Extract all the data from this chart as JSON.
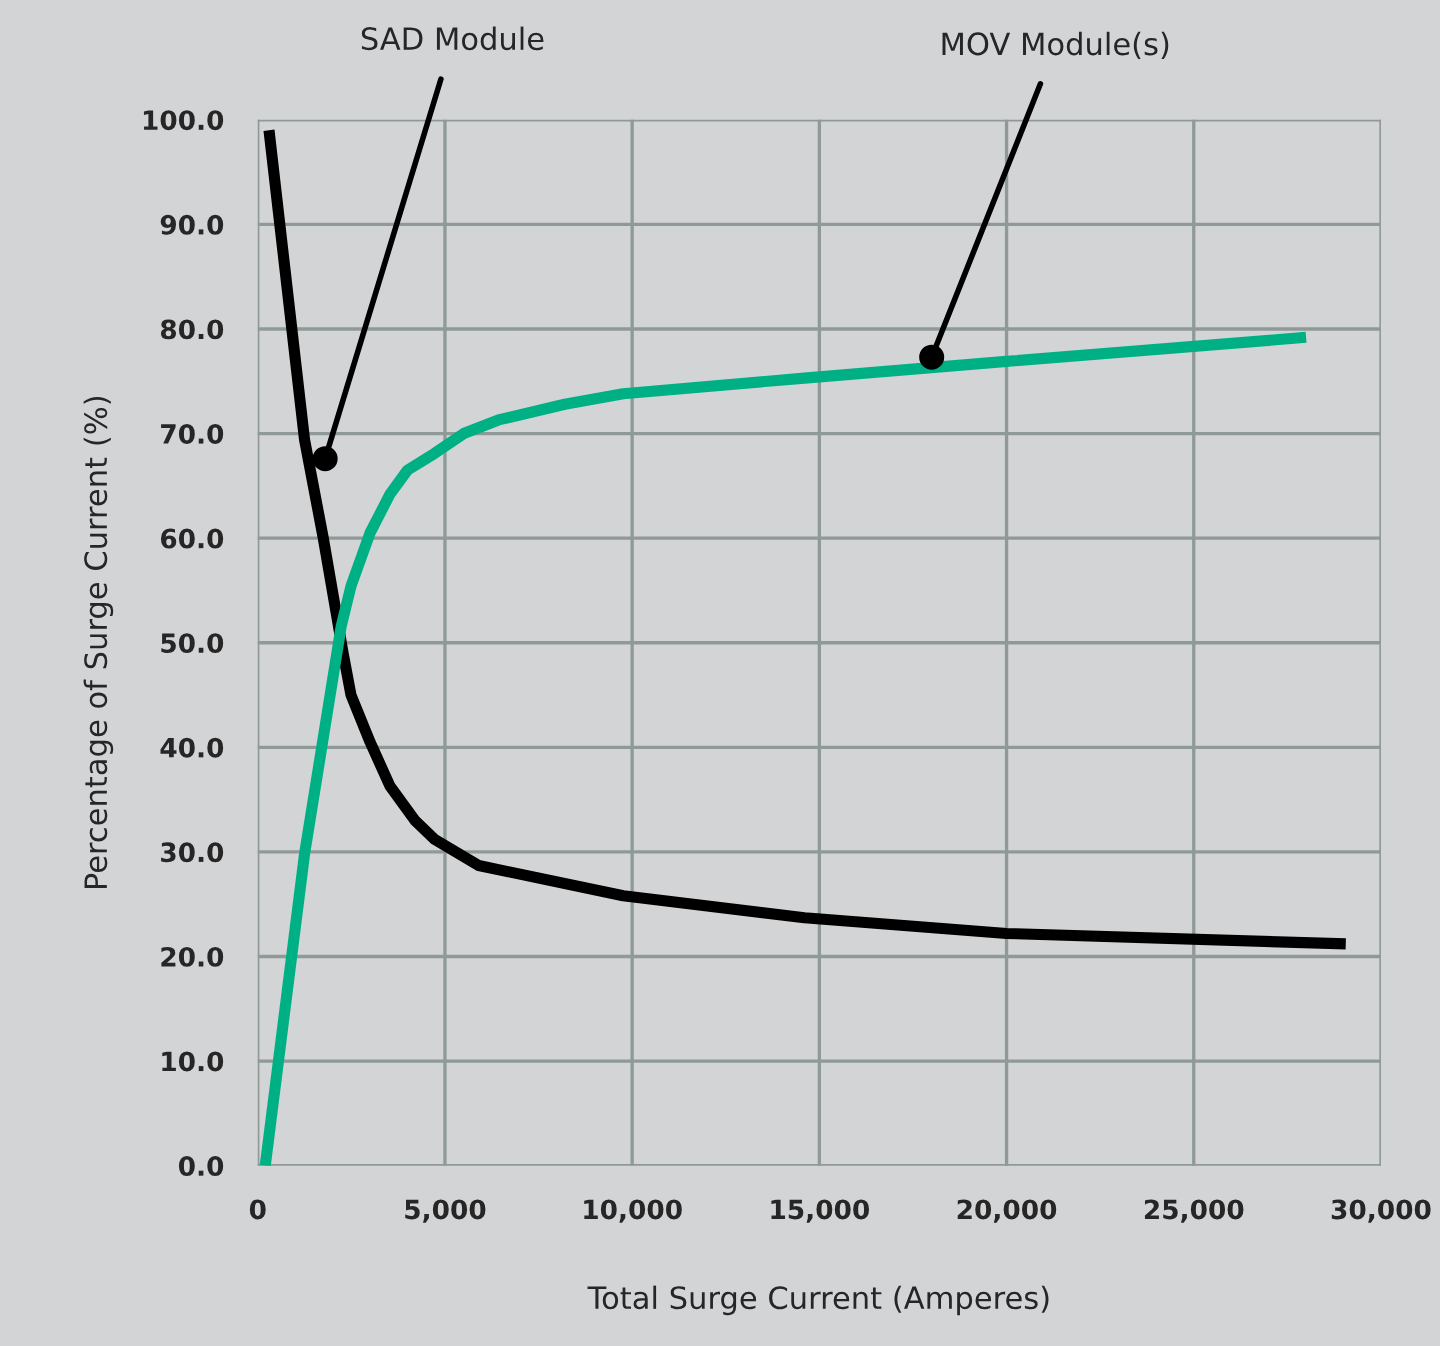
{
  "chart_data": {
    "type": "line",
    "xlabel": "Total Surge Current (Amperes)",
    "ylabel": "Percentage of Surge Current (%)",
    "xlim": [
      0,
      30000
    ],
    "ylim": [
      0,
      100
    ],
    "xticks": [
      {
        "value": 0,
        "label": "0"
      },
      {
        "value": 5000,
        "label": "5,000"
      },
      {
        "value": 10000,
        "label": "10,000"
      },
      {
        "value": 15000,
        "label": "15,000"
      },
      {
        "value": 20000,
        "label": "20,000"
      },
      {
        "value": 25000,
        "label": "25,000"
      },
      {
        "value": 30000,
        "label": "30,000"
      }
    ],
    "yticks": [
      {
        "value": 0,
        "label": "0.0"
      },
      {
        "value": 10,
        "label": "10.0"
      },
      {
        "value": 20,
        "label": "20.0"
      },
      {
        "value": 30,
        "label": "30.0"
      },
      {
        "value": 40,
        "label": "40.0"
      },
      {
        "value": 50,
        "label": "50.0"
      },
      {
        "value": 60,
        "label": "60.0"
      },
      {
        "value": 70,
        "label": "70.0"
      },
      {
        "value": 80,
        "label": "80.0"
      },
      {
        "value": 90,
        "label": "90.0"
      },
      {
        "value": 100,
        "label": "100.0"
      }
    ],
    "grid": true,
    "marker": "none",
    "line_style": "solid",
    "series": [
      {
        "color": "#000000",
        "x": [
          300,
          1250,
          1750,
          2280,
          2490,
          3000,
          3530,
          4200,
          4720,
          5900,
          9760,
          14600,
          20000,
          29060
        ],
        "values": [
          99,
          69.4,
          60,
          49,
          45,
          40.5,
          36.3,
          33,
          31.2,
          28.7,
          25.8,
          23.7,
          22.2,
          21.2
        ]
      },
      {
        "color": "#00b085",
        "x": [
          200,
          1250,
          2230,
          2490,
          3000,
          3530,
          4000,
          4720,
          5500,
          6430,
          8200,
          9760,
          14600,
          20000,
          28000
        ],
        "values": [
          0,
          29.8,
          51.6,
          55.4,
          60.5,
          64.2,
          66.5,
          68.1,
          70,
          71.3,
          72.8,
          73.8,
          75.3,
          76.9,
          79.2
        ]
      }
    ],
    "annotations": [
      {
        "text": "SAD Module",
        "x": 1800,
        "y": 67.6
      },
      {
        "text": "MOV Module(s)",
        "x": 18000,
        "y": 77.3
      }
    ]
  }
}
